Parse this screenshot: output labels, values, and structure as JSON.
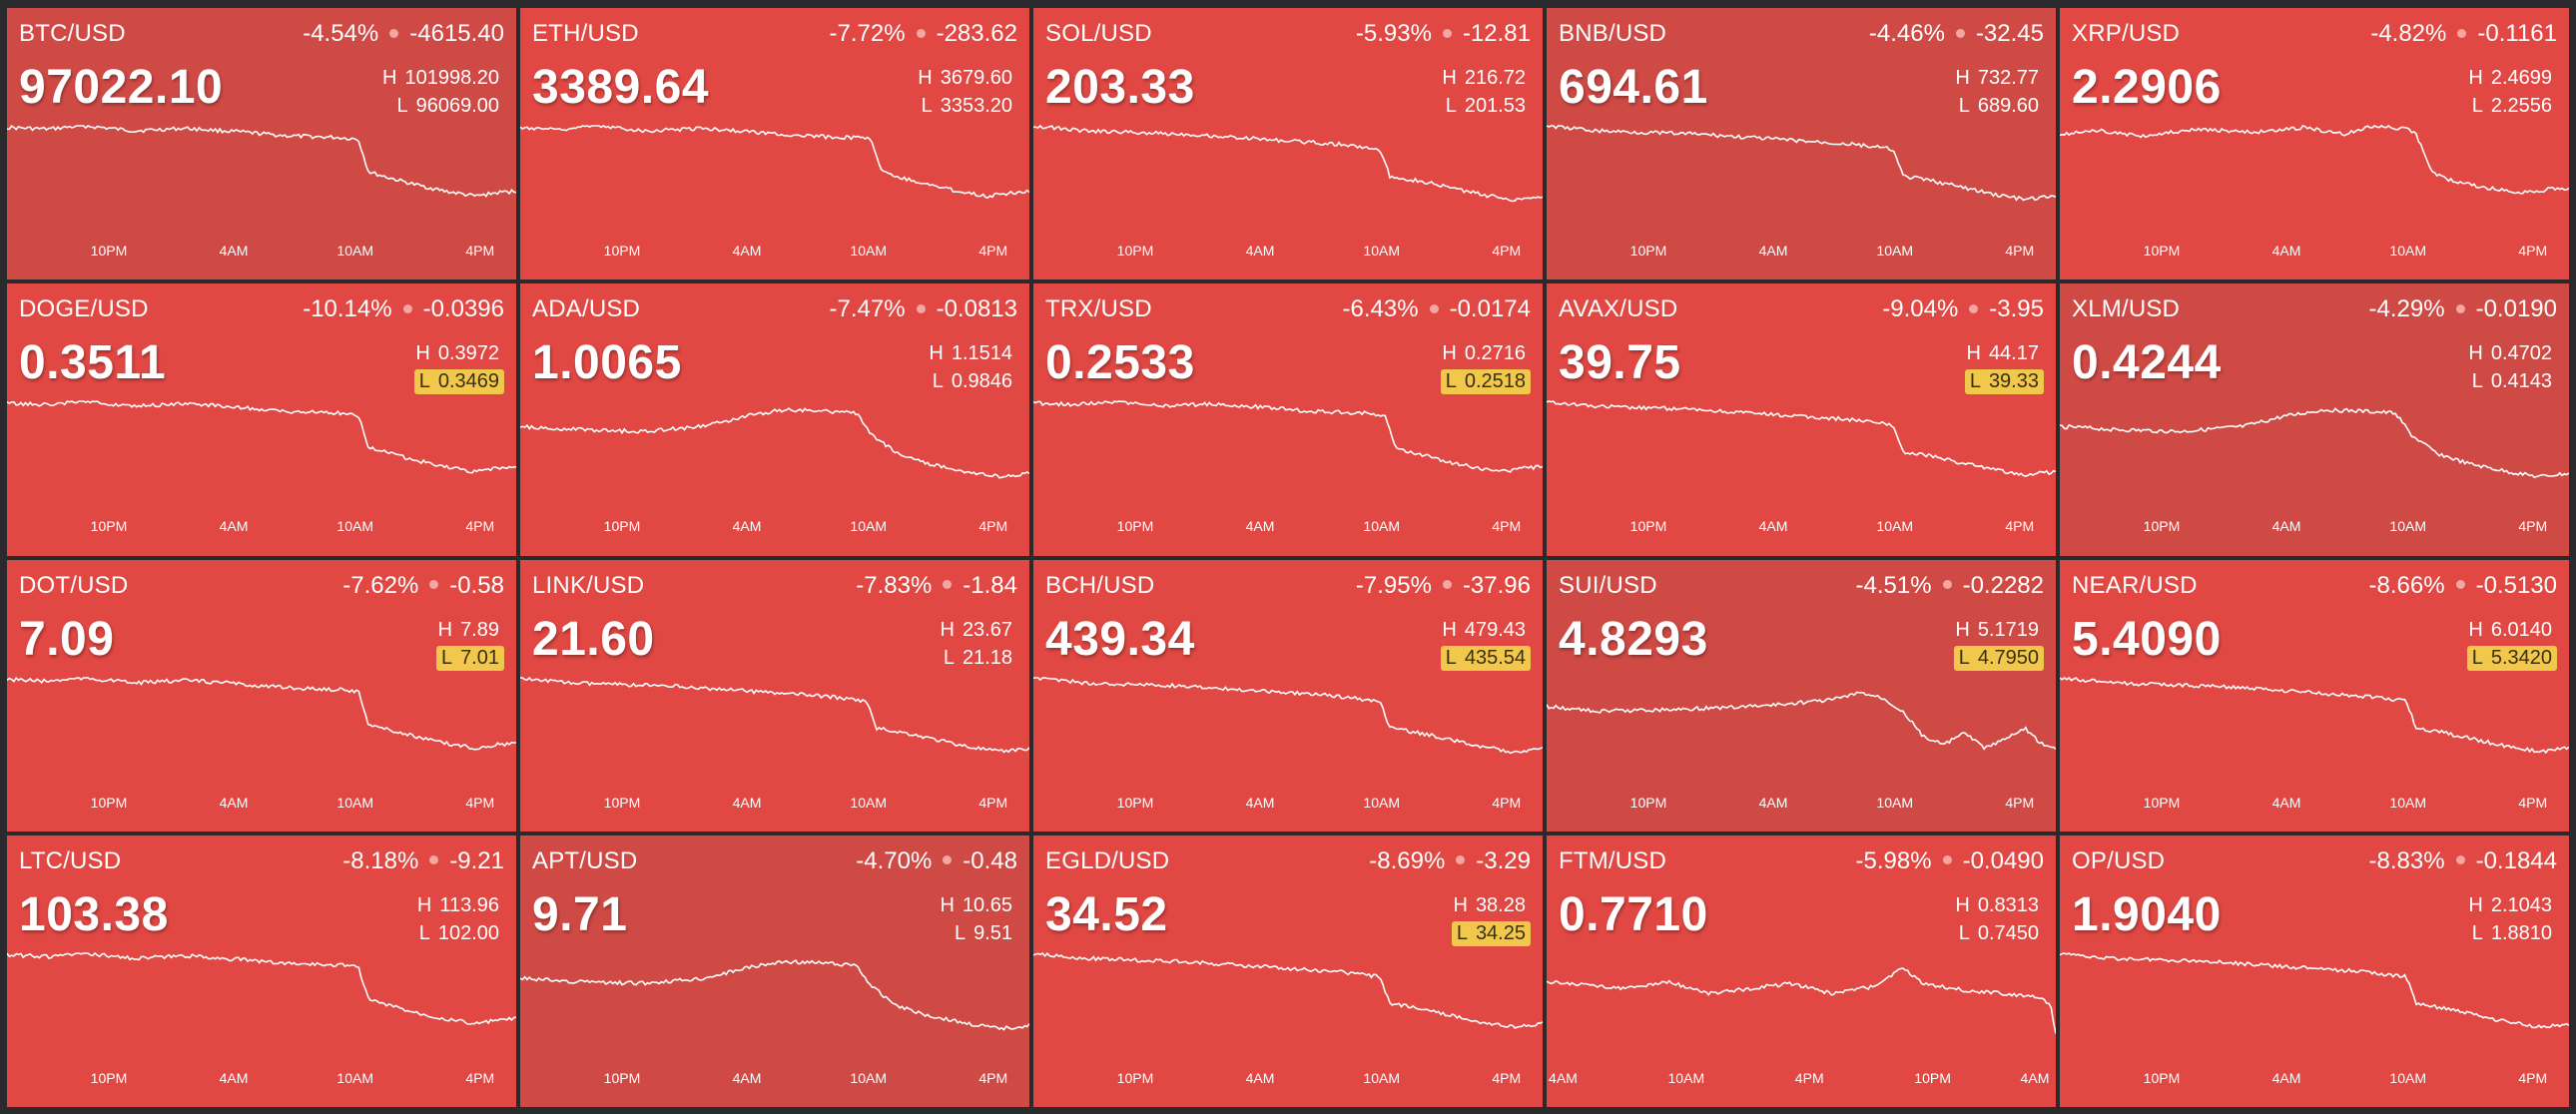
{
  "tiles": [
    {
      "pair": "BTC/USD",
      "pct": "-4.54%",
      "abs": "-4615.40",
      "price": "97022.10",
      "high": "101998.20",
      "low": "96069.00",
      "low_hit": false,
      "color": "#d04a45",
      "shape": "a",
      "times": [
        "10PM",
        "4AM",
        "10AM",
        "4PM"
      ]
    },
    {
      "pair": "ETH/USD",
      "pct": "-7.72%",
      "abs": "-283.62",
      "price": "3389.64",
      "high": "3679.60",
      "low": "3353.20",
      "low_hit": false,
      "color": "#e14843",
      "shape": "a",
      "times": [
        "10PM",
        "4AM",
        "10AM",
        "4PM"
      ]
    },
    {
      "pair": "SOL/USD",
      "pct": "-5.93%",
      "abs": "-12.81",
      "price": "203.33",
      "high": "216.72",
      "low": "201.53",
      "low_hit": false,
      "color": "#e14843",
      "shape": "b",
      "times": [
        "10PM",
        "4AM",
        "10AM",
        "4PM"
      ]
    },
    {
      "pair": "BNB/USD",
      "pct": "-4.46%",
      "abs": "-32.45",
      "price": "694.61",
      "high": "732.77",
      "low": "689.60",
      "low_hit": false,
      "color": "#d04a45",
      "shape": "b",
      "times": [
        "10PM",
        "4AM",
        "10AM",
        "4PM"
      ]
    },
    {
      "pair": "XRP/USD",
      "pct": "-4.82%",
      "abs": "-0.1161",
      "price": "2.2906",
      "high": "2.4699",
      "low": "2.2556",
      "low_hit": false,
      "color": "#e14843",
      "shape": "c",
      "times": [
        "10PM",
        "4AM",
        "10AM",
        "4PM"
      ]
    },
    {
      "pair": "DOGE/USD",
      "pct": "-10.14%",
      "abs": "-0.0396",
      "price": "0.3511",
      "high": "0.3972",
      "low": "0.3469",
      "low_hit": true,
      "color": "#e14843",
      "shape": "a",
      "times": [
        "10PM",
        "4AM",
        "10AM",
        "4PM"
      ]
    },
    {
      "pair": "ADA/USD",
      "pct": "-7.47%",
      "abs": "-0.0813",
      "price": "1.0065",
      "high": "1.1514",
      "low": "0.9846",
      "low_hit": false,
      "color": "#e14843",
      "shape": "d",
      "times": [
        "10PM",
        "4AM",
        "10AM",
        "4PM"
      ]
    },
    {
      "pair": "TRX/USD",
      "pct": "-6.43%",
      "abs": "-0.0174",
      "price": "0.2533",
      "high": "0.2716",
      "low": "0.2518",
      "low_hit": true,
      "color": "#e14843",
      "shape": "a",
      "times": [
        "10PM",
        "4AM",
        "10AM",
        "4PM"
      ]
    },
    {
      "pair": "AVAX/USD",
      "pct": "-9.04%",
      "abs": "-3.95",
      "price": "39.75",
      "high": "44.17",
      "low": "39.33",
      "low_hit": true,
      "color": "#e14843",
      "shape": "b",
      "times": [
        "10PM",
        "4AM",
        "10AM",
        "4PM"
      ]
    },
    {
      "pair": "XLM/USD",
      "pct": "-4.29%",
      "abs": "-0.0190",
      "price": "0.4244",
      "high": "0.4702",
      "low": "0.4143",
      "low_hit": false,
      "color": "#d04a45",
      "shape": "d",
      "times": [
        "10PM",
        "4AM",
        "10AM",
        "4PM"
      ]
    },
    {
      "pair": "DOT/USD",
      "pct": "-7.62%",
      "abs": "-0.58",
      "price": "7.09",
      "high": "7.89",
      "low": "7.01",
      "low_hit": true,
      "color": "#e14843",
      "shape": "a",
      "times": [
        "10PM",
        "4AM",
        "10AM",
        "4PM"
      ]
    },
    {
      "pair": "LINK/USD",
      "pct": "-7.83%",
      "abs": "-1.84",
      "price": "21.60",
      "high": "23.67",
      "low": "21.18",
      "low_hit": false,
      "color": "#e14843",
      "shape": "b",
      "times": [
        "10PM",
        "4AM",
        "10AM",
        "4PM"
      ]
    },
    {
      "pair": "BCH/USD",
      "pct": "-7.95%",
      "abs": "-37.96",
      "price": "439.34",
      "high": "479.43",
      "low": "435.54",
      "low_hit": true,
      "color": "#e14843",
      "shape": "b",
      "times": [
        "10PM",
        "4AM",
        "10AM",
        "4PM"
      ]
    },
    {
      "pair": "SUI/USD",
      "pct": "-4.51%",
      "abs": "-0.2282",
      "price": "4.8293",
      "high": "5.1719",
      "low": "4.7950",
      "low_hit": true,
      "color": "#d04a45",
      "shape": "e",
      "times": [
        "10PM",
        "4AM",
        "10AM",
        "4PM"
      ]
    },
    {
      "pair": "NEAR/USD",
      "pct": "-8.66%",
      "abs": "-0.5130",
      "price": "5.4090",
      "high": "6.0140",
      "low": "5.3420",
      "low_hit": true,
      "color": "#e14843",
      "shape": "b",
      "times": [
        "10PM",
        "4AM",
        "10AM",
        "4PM"
      ]
    },
    {
      "pair": "LTC/USD",
      "pct": "-8.18%",
      "abs": "-9.21",
      "price": "103.38",
      "high": "113.96",
      "low": "102.00",
      "low_hit": false,
      "color": "#e14843",
      "shape": "a",
      "times": [
        "10PM",
        "4AM",
        "10AM",
        "4PM"
      ]
    },
    {
      "pair": "APT/USD",
      "pct": "-4.70%",
      "abs": "-0.48",
      "price": "9.71",
      "high": "10.65",
      "low": "9.51",
      "low_hit": false,
      "color": "#d04a45",
      "shape": "d",
      "times": [
        "10PM",
        "4AM",
        "10AM",
        "4PM"
      ]
    },
    {
      "pair": "EGLD/USD",
      "pct": "-8.69%",
      "abs": "-3.29",
      "price": "34.52",
      "high": "38.28",
      "low": "34.25",
      "low_hit": true,
      "color": "#e14843",
      "shape": "b",
      "times": [
        "10PM",
        "4AM",
        "10AM",
        "4PM"
      ]
    },
    {
      "pair": "FTM/USD",
      "pct": "-5.98%",
      "abs": "-0.0490",
      "price": "0.7710",
      "high": "0.8313",
      "low": "0.7450",
      "low_hit": false,
      "color": "#e14843",
      "shape": "f",
      "times": [
        "4AM",
        "10AM",
        "4PM",
        "10PM",
        "4AM"
      ]
    },
    {
      "pair": "OP/USD",
      "pct": "-8.83%",
      "abs": "-0.1844",
      "price": "1.9040",
      "high": "2.1043",
      "low": "1.8810",
      "low_hit": false,
      "color": "#e14843",
      "shape": "b",
      "times": [
        "10PM",
        "4AM",
        "10AM",
        "4PM"
      ]
    }
  ]
}
